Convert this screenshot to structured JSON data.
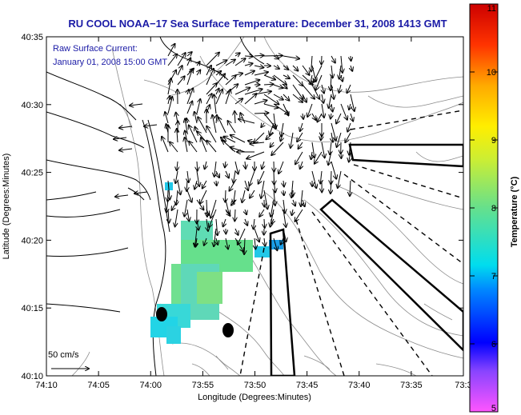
{
  "title": "RU COOL  NOAA−17  Sea Surface Temperature:  December 31, 2008 1413 GMT",
  "current_label": {
    "line1": "Raw Surface Current:",
    "line2": "January 01, 2008 15:00 GMT"
  },
  "scale_bar": {
    "label": "50 cm/s",
    "speed_cm_s": 50
  },
  "colorbar": {
    "label": "Temperature (°C)",
    "min": 5,
    "max": 11,
    "ticks": [
      "5",
      "6",
      "7",
      "8",
      "9",
      "10",
      "11"
    ]
  },
  "axes": {
    "xlabel": "Longitude (Degrees:Minutes)",
    "ylabel": "Latitude (Degrees:Minutes)",
    "xticks": [
      "74:10",
      "74:05",
      "74:00",
      "73:55",
      "73:50",
      "73:45",
      "73:40",
      "73:35",
      "73:3"
    ],
    "yticks": [
      "40:35",
      "40:30",
      "40:25",
      "40:20",
      "40:15",
      "40:10"
    ]
  },
  "colors": {
    "title": "#1a1aa6",
    "land_line": "#000000",
    "bathymetry": "#8c8c8c",
    "sst_cyan": "#22d4e6",
    "sst_green": "#66e08c"
  }
}
